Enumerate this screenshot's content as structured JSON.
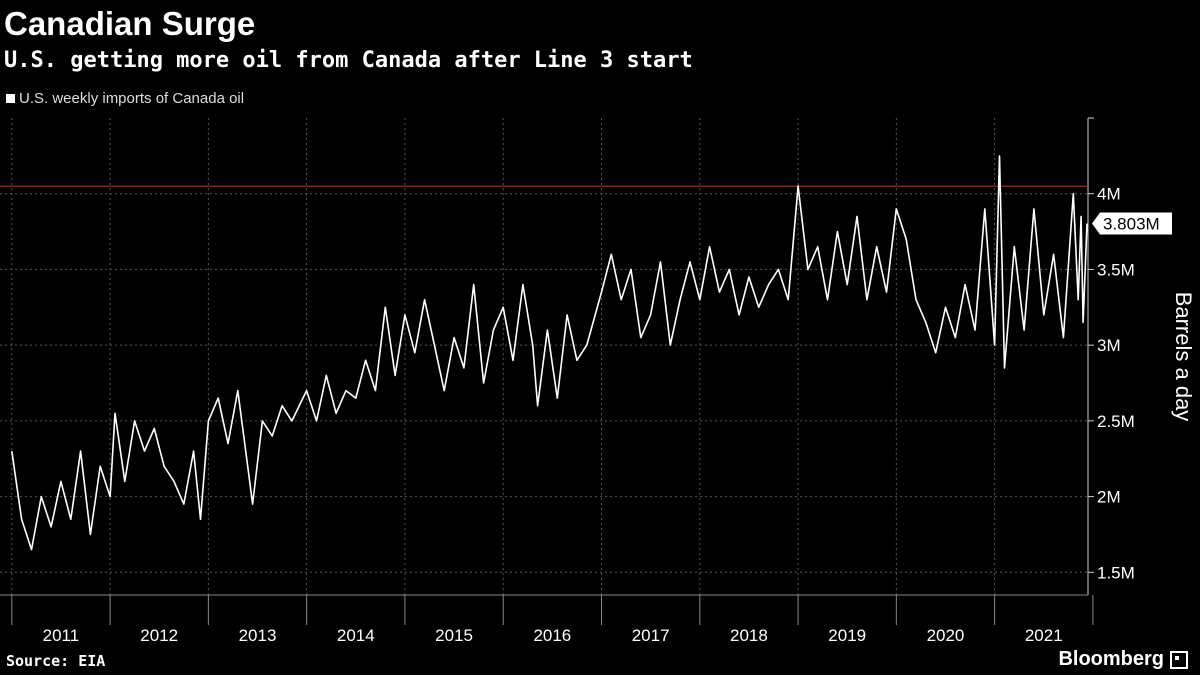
{
  "header": {
    "title": "Canadian Surge",
    "subtitle": "U.S. getting more oil from Canada after Line 3 start"
  },
  "legend": {
    "label": "U.S. weekly imports of Canada oil"
  },
  "footer": {
    "source": "Source: EIA",
    "brand": "Bloomberg"
  },
  "colors": {
    "background": "#000000",
    "line": "#ffffff",
    "reference_line": "#c0392b",
    "grid": "#555555"
  },
  "chart_data": {
    "type": "line",
    "title": "Canadian Surge",
    "subtitle": "U.S. getting more oil from Canada after Line 3 start",
    "ylabel": "Barrels a day",
    "xlabel": "",
    "ylim": [
      1350000,
      4500000
    ],
    "xlim": [
      2010.88,
      2021.95
    ],
    "y_ticks": [
      {
        "value": 1500000,
        "label": "1.5M"
      },
      {
        "value": 2000000,
        "label": "2M"
      },
      {
        "value": 2500000,
        "label": "2.5M"
      },
      {
        "value": 3000000,
        "label": "3M"
      },
      {
        "value": 3500000,
        "label": "3.5M"
      },
      {
        "value": 4000000,
        "label": "4M"
      }
    ],
    "x_ticks": [
      {
        "value": 2011,
        "label": "2011"
      },
      {
        "value": 2012,
        "label": "2012"
      },
      {
        "value": 2013,
        "label": "2013"
      },
      {
        "value": 2014,
        "label": "2014"
      },
      {
        "value": 2015,
        "label": "2015"
      },
      {
        "value": 2016,
        "label": "2016"
      },
      {
        "value": 2017,
        "label": "2017"
      },
      {
        "value": 2018,
        "label": "2018"
      },
      {
        "value": 2019,
        "label": "2019"
      },
      {
        "value": 2020,
        "label": "2020"
      },
      {
        "value": 2021,
        "label": "2021"
      }
    ],
    "reference_line": {
      "value": 4050000
    },
    "last_value_label": "3.803M",
    "grid": true,
    "legend_position": "top-left",
    "series": [
      {
        "name": "U.S. weekly imports of Canada oil",
        "points": [
          [
            2011.0,
            2300000
          ],
          [
            2011.1,
            1850000
          ],
          [
            2011.2,
            1650000
          ],
          [
            2011.3,
            2000000
          ],
          [
            2011.4,
            1800000
          ],
          [
            2011.5,
            2100000
          ],
          [
            2011.6,
            1850000
          ],
          [
            2011.7,
            2300000
          ],
          [
            2011.8,
            1750000
          ],
          [
            2011.9,
            2200000
          ],
          [
            2012.0,
            2000000
          ],
          [
            2012.05,
            2550000
          ],
          [
            2012.15,
            2100000
          ],
          [
            2012.25,
            2500000
          ],
          [
            2012.35,
            2300000
          ],
          [
            2012.45,
            2450000
          ],
          [
            2012.55,
            2200000
          ],
          [
            2012.65,
            2100000
          ],
          [
            2012.75,
            1950000
          ],
          [
            2012.85,
            2300000
          ],
          [
            2012.92,
            1850000
          ],
          [
            2013.0,
            2500000
          ],
          [
            2013.1,
            2650000
          ],
          [
            2013.2,
            2350000
          ],
          [
            2013.3,
            2700000
          ],
          [
            2013.4,
            2200000
          ],
          [
            2013.45,
            1950000
          ],
          [
            2013.55,
            2500000
          ],
          [
            2013.65,
            2400000
          ],
          [
            2013.75,
            2600000
          ],
          [
            2013.85,
            2500000
          ],
          [
            2014.0,
            2700000
          ],
          [
            2014.1,
            2500000
          ],
          [
            2014.2,
            2800000
          ],
          [
            2014.3,
            2550000
          ],
          [
            2014.4,
            2700000
          ],
          [
            2014.5,
            2650000
          ],
          [
            2014.6,
            2900000
          ],
          [
            2014.7,
            2700000
          ],
          [
            2014.8,
            3250000
          ],
          [
            2014.9,
            2800000
          ],
          [
            2015.0,
            3200000
          ],
          [
            2015.1,
            2950000
          ],
          [
            2015.2,
            3300000
          ],
          [
            2015.3,
            3000000
          ],
          [
            2015.4,
            2700000
          ],
          [
            2015.5,
            3050000
          ],
          [
            2015.6,
            2850000
          ],
          [
            2015.7,
            3400000
          ],
          [
            2015.8,
            2750000
          ],
          [
            2015.9,
            3100000
          ],
          [
            2016.0,
            3250000
          ],
          [
            2016.1,
            2900000
          ],
          [
            2016.2,
            3400000
          ],
          [
            2016.3,
            3000000
          ],
          [
            2016.35,
            2600000
          ],
          [
            2016.45,
            3100000
          ],
          [
            2016.55,
            2650000
          ],
          [
            2016.65,
            3200000
          ],
          [
            2016.75,
            2900000
          ],
          [
            2016.85,
            3000000
          ],
          [
            2017.0,
            3350000
          ],
          [
            2017.1,
            3600000
          ],
          [
            2017.2,
            3300000
          ],
          [
            2017.3,
            3500000
          ],
          [
            2017.4,
            3050000
          ],
          [
            2017.5,
            3200000
          ],
          [
            2017.6,
            3550000
          ],
          [
            2017.7,
            3000000
          ],
          [
            2017.8,
            3300000
          ],
          [
            2017.9,
            3550000
          ],
          [
            2018.0,
            3300000
          ],
          [
            2018.1,
            3650000
          ],
          [
            2018.2,
            3350000
          ],
          [
            2018.3,
            3500000
          ],
          [
            2018.4,
            3200000
          ],
          [
            2018.5,
            3450000
          ],
          [
            2018.6,
            3250000
          ],
          [
            2018.7,
            3400000
          ],
          [
            2018.8,
            3500000
          ],
          [
            2018.9,
            3300000
          ],
          [
            2019.0,
            4050000
          ],
          [
            2019.1,
            3500000
          ],
          [
            2019.2,
            3650000
          ],
          [
            2019.3,
            3300000
          ],
          [
            2019.4,
            3750000
          ],
          [
            2019.5,
            3400000
          ],
          [
            2019.6,
            3850000
          ],
          [
            2019.7,
            3300000
          ],
          [
            2019.8,
            3650000
          ],
          [
            2019.9,
            3350000
          ],
          [
            2020.0,
            3900000
          ],
          [
            2020.1,
            3700000
          ],
          [
            2020.2,
            3300000
          ],
          [
            2020.3,
            3150000
          ],
          [
            2020.4,
            2950000
          ],
          [
            2020.5,
            3250000
          ],
          [
            2020.6,
            3050000
          ],
          [
            2020.7,
            3400000
          ],
          [
            2020.8,
            3100000
          ],
          [
            2020.9,
            3900000
          ],
          [
            2021.0,
            3000000
          ],
          [
            2021.05,
            4250000
          ],
          [
            2021.1,
            2850000
          ],
          [
            2021.2,
            3650000
          ],
          [
            2021.3,
            3100000
          ],
          [
            2021.4,
            3900000
          ],
          [
            2021.5,
            3200000
          ],
          [
            2021.6,
            3600000
          ],
          [
            2021.7,
            3050000
          ],
          [
            2021.8,
            4000000
          ],
          [
            2021.85,
            3300000
          ],
          [
            2021.88,
            3850000
          ],
          [
            2021.9,
            3150000
          ],
          [
            2021.94,
            3803000
          ]
        ]
      }
    ]
  }
}
